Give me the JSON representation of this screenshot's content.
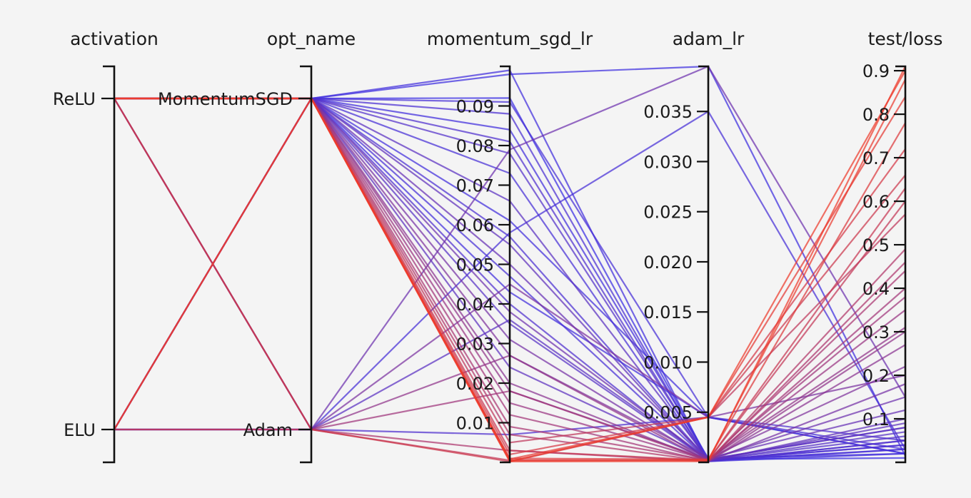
{
  "chart_data": {
    "type": "parallel_coordinates",
    "color_scale": {
      "low": "#2d2df0",
      "high": "#ee3b2c",
      "by": "test/loss"
    },
    "axes": [
      {
        "name": "activation",
        "kind": "categorical",
        "categories": [
          "ReLU",
          "ELU"
        ]
      },
      {
        "name": "opt_name",
        "kind": "categorical",
        "categories": [
          "MomentumSGD",
          "Adam"
        ]
      },
      {
        "name": "momentum_sgd_lr",
        "kind": "numeric",
        "range": [
          0,
          0.1
        ],
        "ticks": [
          0.01,
          0.02,
          0.03,
          0.04,
          0.05,
          0.06,
          0.07,
          0.08,
          0.09
        ],
        "tick_labels": [
          "0.01",
          "0.02",
          "0.03",
          "0.04",
          "0.05",
          "0.06",
          "0.07",
          "0.08",
          "0.09"
        ]
      },
      {
        "name": "adam_lr",
        "kind": "numeric",
        "range": [
          0,
          0.0395
        ],
        "ticks": [
          0.005,
          0.01,
          0.015,
          0.02,
          0.025,
          0.03,
          0.035
        ],
        "tick_labels": [
          "0.005",
          "0.010",
          "0.015",
          "0.020",
          "0.025",
          "0.030",
          "0.035"
        ]
      },
      {
        "name": "test/loss",
        "kind": "numeric",
        "range": [
          0,
          0.91
        ],
        "ticks": [
          0.1,
          0.2,
          0.3,
          0.4,
          0.5,
          0.6,
          0.7,
          0.8,
          0.9
        ],
        "tick_labels": [
          "0.1",
          "0.2",
          "0.3",
          "0.4",
          "0.5",
          "0.6",
          "0.7",
          "0.8",
          "0.9"
        ]
      }
    ],
    "trials": [
      {
        "activation": "ReLU",
        "opt_name": "MomentumSGD",
        "momentum_sgd_lr": 0.099,
        "adam_lr": 0.0001,
        "test/loss": 0.02
      },
      {
        "activation": "ReLU",
        "opt_name": "MomentumSGD",
        "momentum_sgd_lr": 0.098,
        "adam_lr": 0.0395,
        "test/loss": 0.015
      },
      {
        "activation": "ReLU",
        "opt_name": "MomentumSGD",
        "momentum_sgd_lr": 0.092,
        "adam_lr": 0.0003,
        "test/loss": 0.01
      },
      {
        "activation": "ReLU",
        "opt_name": "MomentumSGD",
        "momentum_sgd_lr": 0.091,
        "adam_lr": 0.0045,
        "test/loss": 0.03
      },
      {
        "activation": "ReLU",
        "opt_name": "MomentumSGD",
        "momentum_sgd_lr": 0.088,
        "adam_lr": 0.0002,
        "test/loss": 0.04
      },
      {
        "activation": "ReLU",
        "opt_name": "MomentumSGD",
        "momentum_sgd_lr": 0.084,
        "adam_lr": 0.0004,
        "test/loss": 0.02
      },
      {
        "activation": "ReLU",
        "opt_name": "MomentumSGD",
        "momentum_sgd_lr": 0.081,
        "adam_lr": 0.0001,
        "test/loss": 0.05
      },
      {
        "activation": "ELU",
        "opt_name": "MomentumSGD",
        "momentum_sgd_lr": 0.078,
        "adam_lr": 0.0002,
        "test/loss": 0.06
      },
      {
        "activation": "ELU",
        "opt_name": "MomentumSGD",
        "momentum_sgd_lr": 0.073,
        "adam_lr": 0.0001,
        "test/loss": 0.03
      },
      {
        "activation": "ReLU",
        "opt_name": "MomentumSGD",
        "momentum_sgd_lr": 0.066,
        "adam_lr": 0.0003,
        "test/loss": 0.08
      },
      {
        "activation": "ReLU",
        "opt_name": "MomentumSGD",
        "momentum_sgd_lr": 0.061,
        "adam_lr": 0.0045,
        "test/loss": 0.02
      },
      {
        "activation": "ELU",
        "opt_name": "MomentumSGD",
        "momentum_sgd_lr": 0.057,
        "adam_lr": 0.0002,
        "test/loss": 0.04
      },
      {
        "activation": "ReLU",
        "opt_name": "MomentumSGD",
        "momentum_sgd_lr": 0.055,
        "adam_lr": 0.0001,
        "test/loss": 0.1
      },
      {
        "activation": "ReLU",
        "opt_name": "MomentumSGD",
        "momentum_sgd_lr": 0.05,
        "adam_lr": 0.0004,
        "test/loss": 0.12
      },
      {
        "activation": "ELU",
        "opt_name": "MomentumSGD",
        "momentum_sgd_lr": 0.047,
        "adam_lr": 0.0002,
        "test/loss": 0.03
      },
      {
        "activation": "ReLU",
        "opt_name": "MomentumSGD",
        "momentum_sgd_lr": 0.043,
        "adam_lr": 0.0045,
        "test/loss": 0.02
      },
      {
        "activation": "ReLU",
        "opt_name": "MomentumSGD",
        "momentum_sgd_lr": 0.04,
        "adam_lr": 0.0001,
        "test/loss": 0.05
      },
      {
        "activation": "ELU",
        "opt_name": "MomentumSGD",
        "momentum_sgd_lr": 0.038,
        "adam_lr": 0.0003,
        "test/loss": 0.15
      },
      {
        "activation": "ReLU",
        "opt_name": "MomentumSGD",
        "momentum_sgd_lr": 0.035,
        "adam_lr": 0.0002,
        "test/loss": 0.07
      },
      {
        "activation": "ReLU",
        "opt_name": "MomentumSGD",
        "momentum_sgd_lr": 0.031,
        "adam_lr": 0.0001,
        "test/loss": 0.18
      },
      {
        "activation": "ELU",
        "opt_name": "MomentumSGD",
        "momentum_sgd_lr": 0.027,
        "adam_lr": 0.0004,
        "test/loss": 0.22
      },
      {
        "activation": "ReLU",
        "opt_name": "MomentumSGD",
        "momentum_sgd_lr": 0.024,
        "adam_lr": 0.0002,
        "test/loss": 0.09
      },
      {
        "activation": "ReLU",
        "opt_name": "MomentumSGD",
        "momentum_sgd_lr": 0.02,
        "adam_lr": 0.0001,
        "test/loss": 0.27
      },
      {
        "activation": "ELU",
        "opt_name": "MomentumSGD",
        "momentum_sgd_lr": 0.018,
        "adam_lr": 0.0003,
        "test/loss": 0.31
      },
      {
        "activation": "ReLU",
        "opt_name": "MomentumSGD",
        "momentum_sgd_lr": 0.015,
        "adam_lr": 0.0002,
        "test/loss": 0.35
      },
      {
        "activation": "ReLU",
        "opt_name": "MomentumSGD",
        "momentum_sgd_lr": 0.012,
        "adam_lr": 0.0001,
        "test/loss": 0.4
      },
      {
        "activation": "ELU",
        "opt_name": "MomentumSGD",
        "momentum_sgd_lr": 0.009,
        "adam_lr": 0.0002,
        "test/loss": 0.44
      },
      {
        "activation": "ReLU",
        "opt_name": "MomentumSGD",
        "momentum_sgd_lr": 0.007,
        "adam_lr": 0.0001,
        "test/loss": 0.49
      },
      {
        "activation": "ReLU",
        "opt_name": "MomentumSGD",
        "momentum_sgd_lr": 0.005,
        "adam_lr": 0.0045,
        "test/loss": 0.57
      },
      {
        "activation": "ELU",
        "opt_name": "MomentumSGD",
        "momentum_sgd_lr": 0.003,
        "adam_lr": 0.0002,
        "test/loss": 0.63
      },
      {
        "activation": "ReLU",
        "opt_name": "MomentumSGD",
        "momentum_sgd_lr": 0.002,
        "adam_lr": 0.0045,
        "test/loss": 0.72
      },
      {
        "activation": "ReLU",
        "opt_name": "MomentumSGD",
        "momentum_sgd_lr": 0.001,
        "adam_lr": 0.0003,
        "test/loss": 0.78
      },
      {
        "activation": "ReLU",
        "opt_name": "MomentumSGD",
        "momentum_sgd_lr": 0.0008,
        "adam_lr": 0.0045,
        "test/loss": 0.84
      },
      {
        "activation": "ReLU",
        "opt_name": "MomentumSGD",
        "momentum_sgd_lr": 0.0005,
        "adam_lr": 0.0002,
        "test/loss": 0.88
      },
      {
        "activation": "ReLU",
        "opt_name": "MomentumSGD",
        "momentum_sgd_lr": 0.0003,
        "adam_lr": 0.0045,
        "test/loss": 0.9
      },
      {
        "activation": "ELU",
        "opt_name": "MomentumSGD",
        "momentum_sgd_lr": 0.0002,
        "adam_lr": 0.0001,
        "test/loss": 0.91
      },
      {
        "activation": "ELU",
        "opt_name": "Adam",
        "momentum_sgd_lr": 0.079,
        "adam_lr": 0.0395,
        "test/loss": 0.15
      },
      {
        "activation": "ELU",
        "opt_name": "Adam",
        "momentum_sgd_lr": 0.058,
        "adam_lr": 0.035,
        "test/loss": 0.03
      },
      {
        "activation": "ReLU",
        "opt_name": "Adam",
        "momentum_sgd_lr": 0.045,
        "adam_lr": 0.0045,
        "test/loss": 0.2
      },
      {
        "activation": "ReLU",
        "opt_name": "Adam",
        "momentum_sgd_lr": 0.036,
        "adam_lr": 0.0003,
        "test/loss": 0.08
      },
      {
        "activation": "ELU",
        "opt_name": "Adam",
        "momentum_sgd_lr": 0.027,
        "adam_lr": 0.0001,
        "test/loss": 0.3
      },
      {
        "activation": "ReLU",
        "opt_name": "Adam",
        "momentum_sgd_lr": 0.018,
        "adam_lr": 0.0002,
        "test/loss": 0.38
      },
      {
        "activation": "ELU",
        "opt_name": "Adam",
        "momentum_sgd_lr": 0.007,
        "adam_lr": 0.0045,
        "test/loss": 0.05
      },
      {
        "activation": "ReLU",
        "opt_name": "Adam",
        "momentum_sgd_lr": 0.003,
        "adam_lr": 0.0001,
        "test/loss": 0.46
      },
      {
        "activation": "ELU",
        "opt_name": "Adam",
        "momentum_sgd_lr": 0.0005,
        "adam_lr": 0.0002,
        "test/loss": 0.6
      },
      {
        "activation": "ReLU",
        "opt_name": "Adam",
        "momentum_sgd_lr": 0.0002,
        "adam_lr": 0.0045,
        "test/loss": 0.66
      }
    ]
  }
}
